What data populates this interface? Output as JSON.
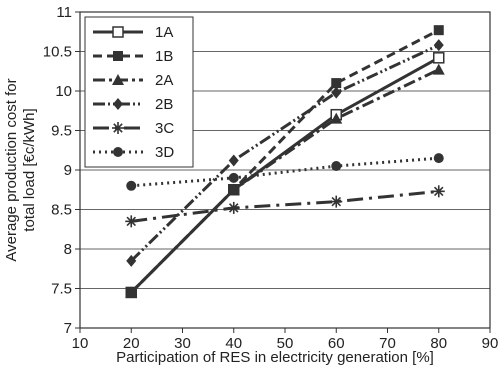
{
  "chart_data": {
    "type": "line",
    "xlabel": "Participation of RES in electricity generation [%]",
    "ylabel_lines": [
      "Average production cost for",
      "total load [€c/kWh]"
    ],
    "xlim": [
      10,
      90
    ],
    "ylim": [
      7,
      11
    ],
    "xticks": [
      "10",
      "20",
      "30",
      "40",
      "50",
      "60",
      "70",
      "80",
      "90"
    ],
    "yticks": [
      "7",
      "7.5",
      "8",
      "8.5",
      "9",
      "9.5",
      "10",
      "10.5",
      "11"
    ],
    "grid": "horizontal",
    "legend_position": "top-left",
    "x": [
      20,
      40,
      60,
      80
    ],
    "series": [
      {
        "name": "1A",
        "values": [
          7.45,
          8.75,
          9.7,
          10.42
        ],
        "color": "#333333",
        "dash": "solid",
        "marker": "open-square"
      },
      {
        "name": "1B",
        "values": [
          7.45,
          8.75,
          10.1,
          10.77
        ],
        "color": "#333333",
        "dash": "dashed",
        "marker": "square"
      },
      {
        "name": "2A",
        "values": [
          7.45,
          8.75,
          9.65,
          10.27
        ],
        "color": "#333333",
        "dash": "dash-dot",
        "marker": "triangle"
      },
      {
        "name": "2B",
        "values": [
          7.85,
          9.12,
          9.98,
          10.58
        ],
        "color": "#333333",
        "dash": "dash-dot-dot",
        "marker": "diamond"
      },
      {
        "name": "3C",
        "values": [
          8.35,
          8.52,
          8.6,
          8.73
        ],
        "color": "#333333",
        "dash": "long-dash",
        "marker": "star"
      },
      {
        "name": "3D",
        "values": [
          8.8,
          8.9,
          9.05,
          9.15
        ],
        "color": "#333333",
        "dash": "dotted",
        "marker": "circle"
      }
    ]
  }
}
